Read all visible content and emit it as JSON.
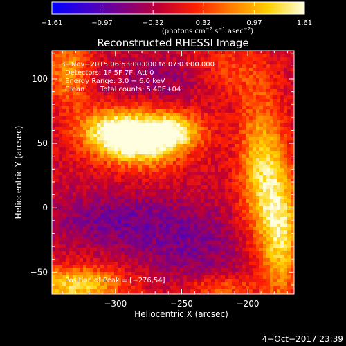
{
  "chart_data": {
    "type": "heatmap",
    "title": "Reconstructed RHESSI Image",
    "xlabel": "Heliocentric X (arcsec)",
    "ylabel": "Heliocentric Y (arcsec)",
    "xlim": [
      -348,
      -165
    ],
    "ylim": [
      -67,
      122
    ],
    "x_ticks": [
      -300,
      -250,
      -200
    ],
    "x_tick_labels": [
      "−300",
      "−250",
      "−200"
    ],
    "y_ticks": [
      -50,
      0,
      50,
      100
    ],
    "y_tick_labels": [
      "−50",
      "0",
      "50",
      "100"
    ],
    "colorbar": {
      "min": -1.61,
      "max": 1.61,
      "ticks": [
        -1.61,
        -0.97,
        -0.32,
        0.32,
        0.97,
        1.61
      ],
      "tick_labels": [
        "−1.61",
        "−0.97",
        "−0.32",
        "0.32",
        "0.97",
        "1.61"
      ],
      "unit_base": "(photons cm",
      "unit_exp1": "−2",
      "unit_mid": " s",
      "unit_exp2": "−1",
      "unit_mid2": " asec",
      "unit_exp3": "−2",
      "unit_end": ")",
      "colormap": [
        "#0000ff",
        "#4000cc",
        "#800080",
        "#c00030",
        "#ff2000",
        "#ff8000",
        "#ffd000",
        "#ffffe0"
      ]
    },
    "sources": [
      {
        "x": -280,
        "y": 52,
        "peak": 1.61,
        "sx": 22,
        "sy": 14
      },
      {
        "x": -305,
        "y": 60,
        "peak": 0.9,
        "sx": 18,
        "sy": 12
      },
      {
        "x": -255,
        "y": 60,
        "peak": 0.8,
        "sx": 16,
        "sy": 10
      }
    ],
    "annotations": {
      "time": "3−Nov−2015 06:53:00.000 to 07:03:00.000",
      "detectors": "Detectors: 1F 5F 7F, Att 0",
      "energy": "Energy Range: 3.0 − 6.0 keV",
      "clean": "Clean",
      "counts": "Total counts: 5.40E+04",
      "peak": "Position of Peak = [−276,54]"
    }
  },
  "footer": {
    "timestamp": "4−Oct−2017 23:39"
  }
}
